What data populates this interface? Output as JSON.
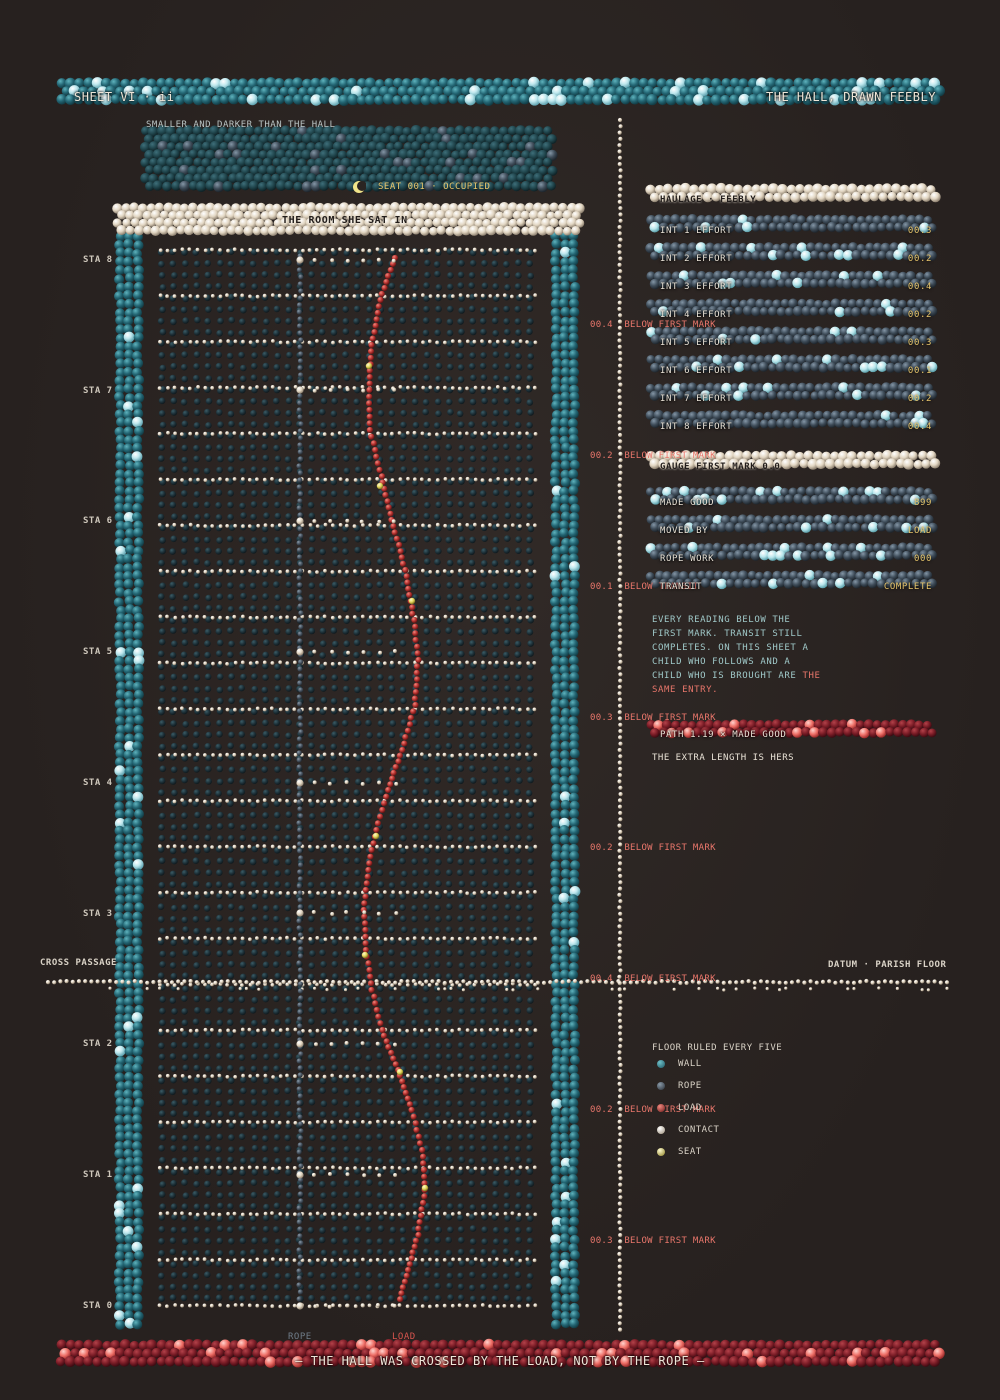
{
  "header": {
    "sheet": "SHEET VI · ii",
    "title": "THE HALL, DRAWN FEEBLY"
  },
  "seat_room": {
    "caption": "SMALLER AND DARKER THAN THE HALL",
    "seat_label": "SEAT 001 · OCCUPIED"
  },
  "hall": {
    "title": "THE ROOM SHE SAT IN"
  },
  "stations": [
    "STA 8",
    "STA 7",
    "STA 6",
    "STA 5",
    "STA 4",
    "STA 3",
    "STA 2",
    "STA 1",
    "STA 0"
  ],
  "cross_passage": {
    "left": "CROSS PASSAGE",
    "right": "DATUM · PARISH FLOOR"
  },
  "below_marks": [
    {
      "value": "00.4",
      "label": "BELOW FIRST MARK"
    },
    {
      "value": "00.2",
      "label": "BELOW FIRST MARK"
    },
    {
      "value": "00.1",
      "label": "BELOW TRANSIT"
    },
    {
      "value": "00.3",
      "label": "BELOW FIRST MARK"
    },
    {
      "value": "00.2",
      "label": "BELOW FIRST MARK"
    },
    {
      "value": "00.4",
      "label": "BELOW FIRST MARK"
    },
    {
      "value": "00.2",
      "label": "BELOW FIRST MARK"
    },
    {
      "value": "00.3",
      "label": "BELOW FIRST MARK"
    }
  ],
  "haulage": {
    "header": "HAULAGE · FEEBLY",
    "rows": [
      {
        "label": "INT 1  EFFORT",
        "value": "00.3"
      },
      {
        "label": "INT 2  EFFORT",
        "value": "00.2"
      },
      {
        "label": "INT 3  EFFORT",
        "value": "00.4"
      },
      {
        "label": "INT 4  EFFORT",
        "value": "00.2"
      },
      {
        "label": "INT 5  EFFORT",
        "value": "00.3"
      },
      {
        "label": "INT 6  EFFORT",
        "value": "00.1"
      },
      {
        "label": "INT 7  EFFORT",
        "value": "00.2"
      },
      {
        "label": "INT 8  EFFORT",
        "value": "00.4"
      }
    ]
  },
  "gauge": {
    "header": "GAUGE FIRST MARK 0.0",
    "rows": [
      {
        "label": "MADE GOOD",
        "value": "899"
      },
      {
        "label": "MOVED BY",
        "value": "LOAD"
      },
      {
        "label": "ROPE WORK",
        "value": "000"
      },
      {
        "label": "TRANSIT",
        "value": "COMPLETE"
      }
    ]
  },
  "note": {
    "text": "EVERY READING BELOW THE FIRST MARK. TRANSIT STILL COMPLETES. ON THIS SHEET A CHILD WHO FOLLOWS AND A CHILD WHO IS BROUGHT ARE",
    "emphasis": "THE SAME ENTRY."
  },
  "path": {
    "label": "PATH 1.19 × MADE GOOD",
    "caption": "THE EXTRA LENGTH IS HERS"
  },
  "legend": {
    "title": "FLOOR RULED EVERY FIVE",
    "items": [
      {
        "label": "WALL",
        "color": "#2e7885"
      },
      {
        "label": "ROPE",
        "color": "#4a5663"
      },
      {
        "label": "LOAD",
        "color": "#d8554e"
      },
      {
        "label": "CONTACT",
        "color": "#e8dcc6"
      },
      {
        "label": "SEAT",
        "color": "#e8df6a"
      }
    ]
  },
  "bottom_labels": {
    "rope": "ROPE",
    "load": "LOAD"
  },
  "footer": {
    "caption": "— THE HALL WAS CROSSED BY THE LOAD, NOT BY THE ROPE —"
  },
  "colors": {
    "wall": "#2b6f7c",
    "rope": "#4a5663",
    "load": "#c43a3a",
    "contact": "#e6dccb",
    "seat": "#e8df6a",
    "cream": "#e9e0cf",
    "warm_text": "#e8766b",
    "gold_text": "#e8c56a"
  }
}
